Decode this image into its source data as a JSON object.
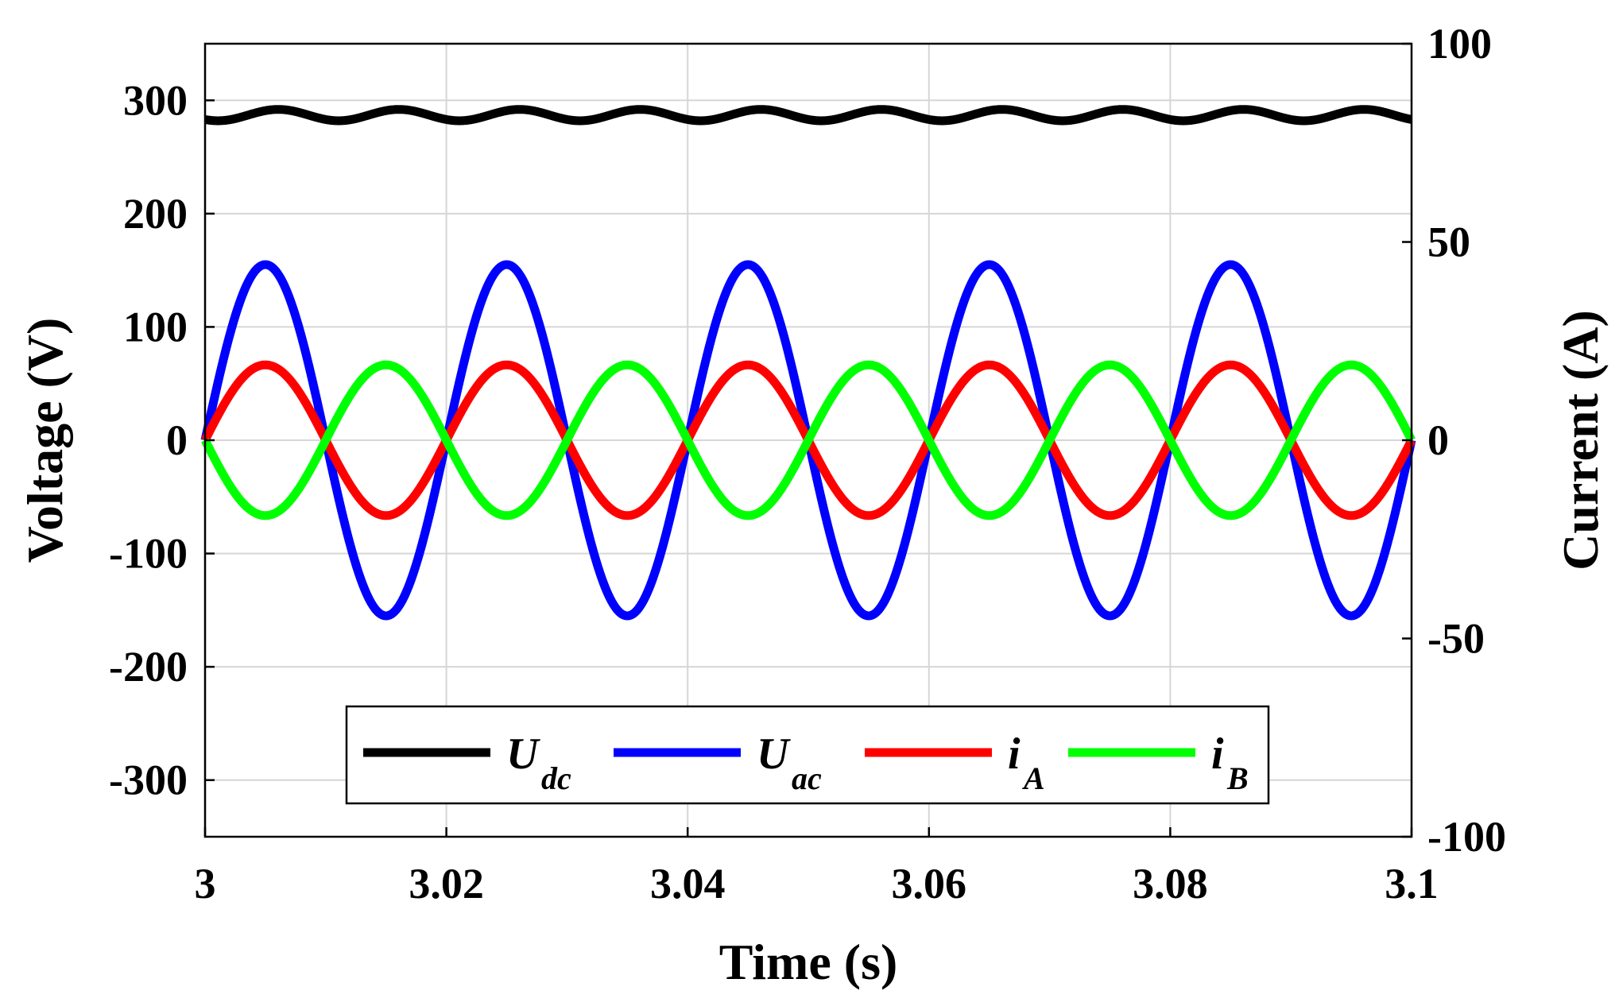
{
  "chart_data": {
    "type": "line",
    "xlabel": "Time (s)",
    "ylabel_left": "Voltage (V)",
    "ylabel_right": "Current (A)",
    "xlim": [
      3,
      3.1
    ],
    "ylim_left": [
      -350,
      350
    ],
    "ylim_right": [
      -100,
      100
    ],
    "x_ticks": [
      "3",
      "3.02",
      "3.04",
      "3.06",
      "3.08",
      "3.1"
    ],
    "y_ticks_left": [
      "300",
      "200",
      "100",
      "0",
      "-100",
      "-200",
      "-300"
    ],
    "y_ticks_right": [
      "100",
      "50",
      "0",
      "-50",
      "-100"
    ],
    "grid": true,
    "legend_position": "bottom-center",
    "series": [
      {
        "id": "Udc",
        "name": "U",
        "subscript": "dc",
        "axis": "left",
        "color": "#000000",
        "waveform": "dc-ripple",
        "mean": 287,
        "ripple_amplitude": 5,
        "frequency_hz": 100
      },
      {
        "id": "Uac",
        "name": "U",
        "subscript": "ac",
        "axis": "left",
        "color": "#0000ff",
        "waveform": "sine",
        "amplitude": 155,
        "frequency_hz": 50,
        "phase_deg": 0
      },
      {
        "id": "iA",
        "name": "i",
        "subscript": "A",
        "axis": "right",
        "color": "#ff0000",
        "waveform": "sine",
        "amplitude": 19,
        "frequency_hz": 50,
        "phase_deg": 0
      },
      {
        "id": "iB",
        "name": "i",
        "subscript": "B",
        "axis": "right",
        "color": "#00ff00",
        "waveform": "sine",
        "amplitude": 19,
        "frequency_hz": 50,
        "phase_deg": 180
      }
    ]
  }
}
